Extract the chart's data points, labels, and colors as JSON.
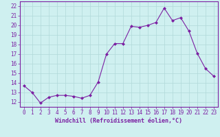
{
  "x": [
    0,
    1,
    2,
    3,
    4,
    5,
    6,
    7,
    8,
    9,
    10,
    11,
    12,
    13,
    14,
    15,
    16,
    17,
    18,
    19,
    20,
    21,
    22,
    23
  ],
  "y": [
    13.7,
    13.0,
    11.9,
    12.5,
    12.7,
    12.7,
    12.6,
    12.4,
    12.7,
    14.1,
    17.0,
    18.1,
    18.1,
    19.9,
    19.8,
    20.0,
    20.3,
    21.8,
    20.5,
    20.8,
    19.4,
    17.1,
    15.5,
    14.7
  ],
  "line_color": "#7B1FA2",
  "marker": "D",
  "marker_size": 2,
  "xlabel": "Windchill (Refroidissement éolien,°C)",
  "ylabel_ticks": [
    12,
    13,
    14,
    15,
    16,
    17,
    18,
    19,
    20,
    21,
    22
  ],
  "ylim": [
    11.5,
    22.5
  ],
  "xlim": [
    -0.5,
    23.5
  ],
  "bg_color": "#cff0f0",
  "grid_color": "#b0d8d8",
  "text_color": "#7B1FA2",
  "tick_fontsize": 5.5,
  "xlabel_fontsize": 6.0
}
